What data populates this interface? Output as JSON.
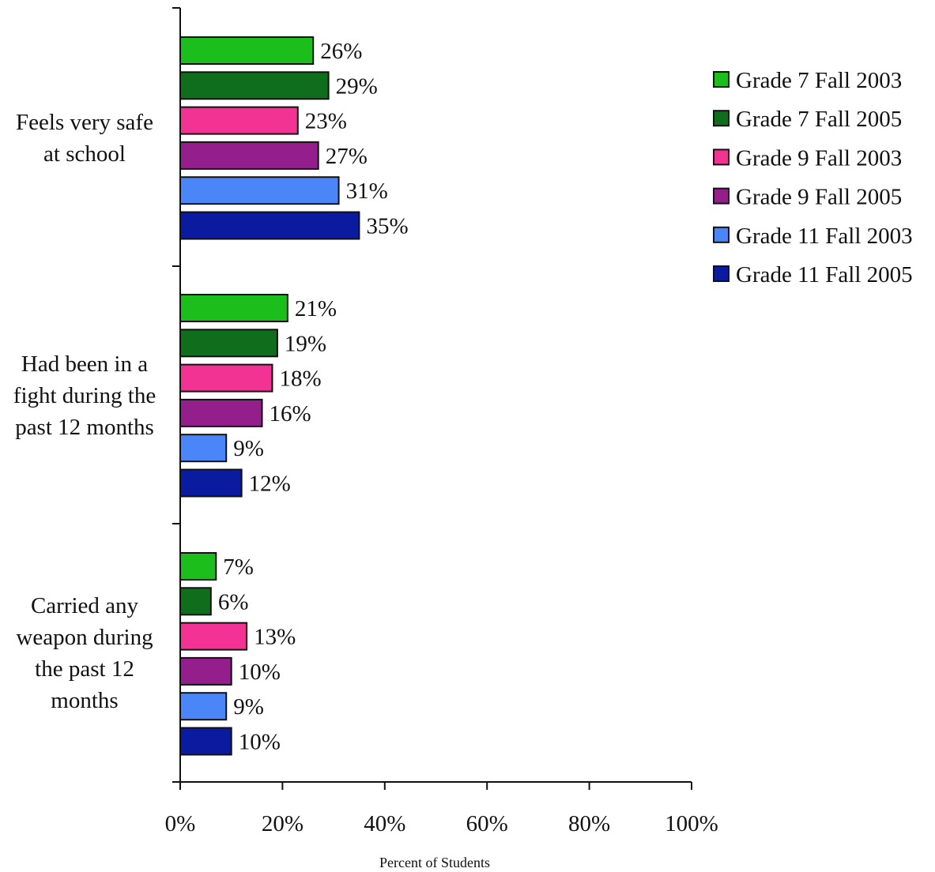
{
  "chart_data": {
    "type": "bar",
    "orientation": "horizontal",
    "categories": [
      [
        "Feels very safe",
        "at school"
      ],
      [
        "Had been in a",
        "fight during the",
        "past 12 months"
      ],
      [
        "Carried  any",
        "weapon during",
        "the past 12",
        "months"
      ]
    ],
    "series": [
      {
        "name": "Grade 7 Fall 2003",
        "color": "#1CBE1C",
        "values": [
          26,
          21,
          7
        ]
      },
      {
        "name": "Grade 7 Fall 2005",
        "color": "#0E6E1C",
        "values": [
          29,
          19,
          6
        ]
      },
      {
        "name": "Grade 9 Fall 2003",
        "color": "#F33393",
        "values": [
          23,
          18,
          13
        ]
      },
      {
        "name": "Grade 9 Fall 2005",
        "color": "#931E8C",
        "values": [
          27,
          16,
          10
        ]
      },
      {
        "name": "Grade 11 Fall 2003",
        "color": "#4A86F7",
        "values": [
          31,
          9,
          9
        ]
      },
      {
        "name": "Grade 11 Fall 2005",
        "color": "#0A1BA0",
        "values": [
          35,
          12,
          10
        ]
      }
    ],
    "value_labels": [
      [
        "26%",
        "21%",
        "7%"
      ],
      [
        "29%",
        "19%",
        "6%"
      ],
      [
        "23%",
        "18%",
        "13%"
      ],
      [
        "27%",
        "16%",
        "10%"
      ],
      [
        "31%",
        "9%",
        "9%"
      ],
      [
        "35%",
        "12%",
        "10%"
      ]
    ],
    "xlim": [
      0,
      100
    ],
    "x_ticks": [
      "0%",
      "20%",
      "40%",
      "60%",
      "80%",
      "100%"
    ],
    "xlabel": "Percent of Students",
    "ylabel": "",
    "title": "",
    "legend_position": "right",
    "grid": false
  }
}
